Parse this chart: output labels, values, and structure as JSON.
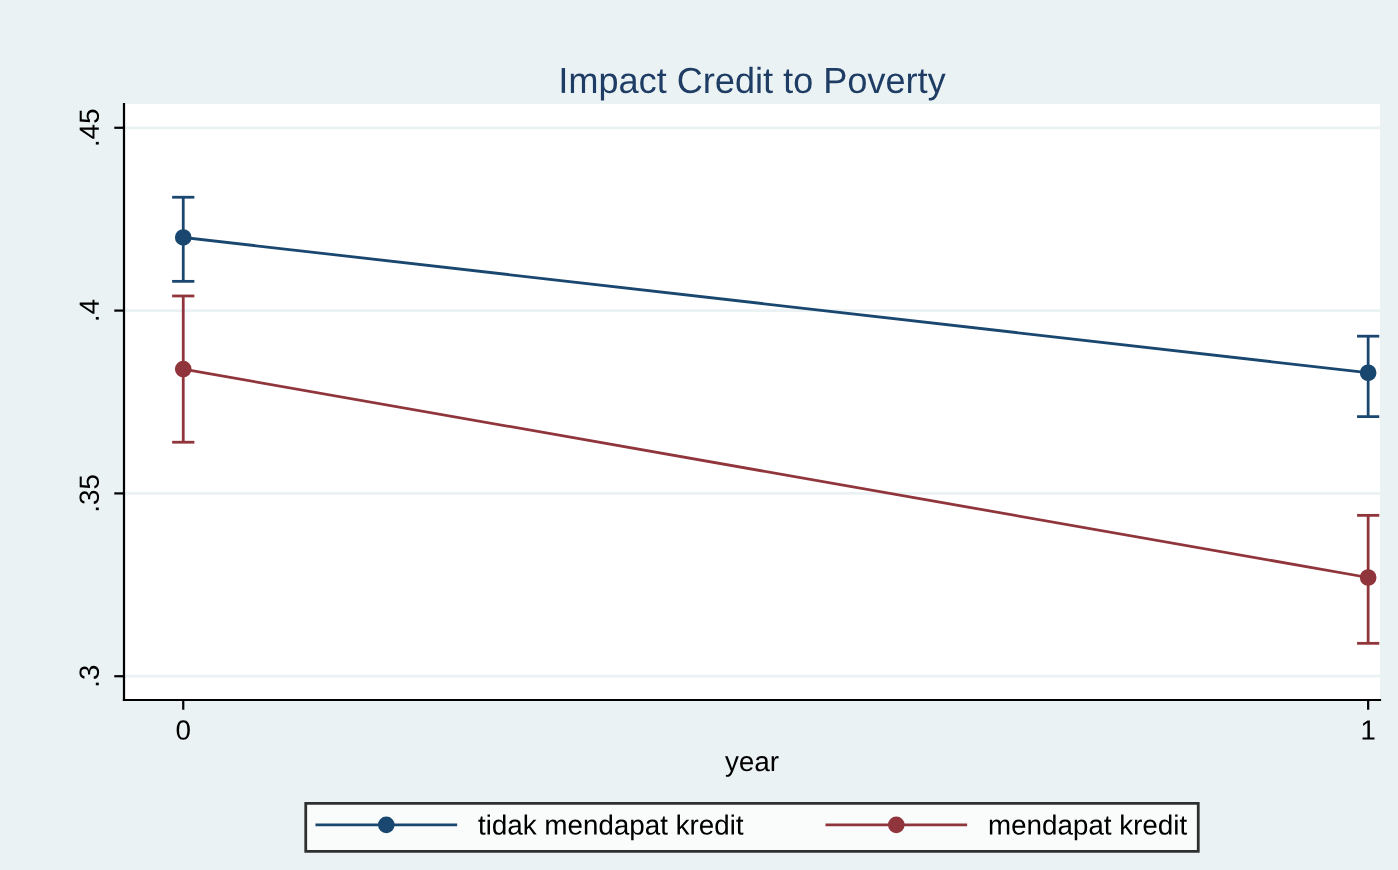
{
  "chart_data": {
    "type": "line",
    "title": "Impact Credit to Poverty",
    "xlabel": "year",
    "x": [
      0,
      1
    ],
    "xlim": [
      -0.05,
      1.01
    ],
    "xticks": [
      0,
      1
    ],
    "ylim": [
      0.2935,
      0.4565
    ],
    "yticks": [
      {
        "value": 0.3,
        "label": ".3"
      },
      {
        "value": 0.35,
        "label": ".35"
      },
      {
        "value": 0.4,
        "label": ".4"
      },
      {
        "value": 0.45,
        "label": ".45"
      }
    ],
    "grid": "y",
    "legend": "bottom",
    "marker": "circle",
    "line_style": "solid",
    "series": [
      {
        "name": "tidak mendapat kredit",
        "color": "#1a476f",
        "values": [
          0.42,
          0.383
        ],
        "errors": [
          [
            0.408,
            0.431
          ],
          [
            0.371,
            0.393
          ]
        ]
      },
      {
        "name": "mendapat kredit",
        "color": "#90353b",
        "values": [
          0.384,
          0.327
        ],
        "errors": [
          [
            0.364,
            0.404
          ],
          [
            0.309,
            0.344
          ]
        ]
      }
    ]
  }
}
